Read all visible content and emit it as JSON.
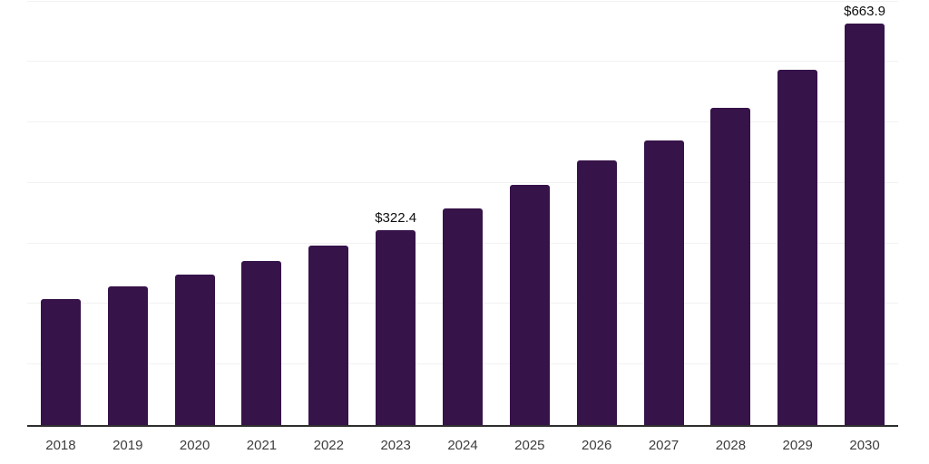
{
  "chart_data": {
    "type": "bar",
    "title": "",
    "xlabel": "",
    "ylabel": "",
    "categories": [
      "2018",
      "2019",
      "2020",
      "2021",
      "2022",
      "2023",
      "2024",
      "2025",
      "2026",
      "2027",
      "2028",
      "2029",
      "2030"
    ],
    "values": [
      208,
      229.5,
      248,
      270.5,
      296.5,
      322.4,
      358,
      396.5,
      437.5,
      469.5,
      524.5,
      587.5,
      663.9
    ],
    "data_labels": {
      "2023": "$322.4",
      "2030": "$663.9"
    },
    "ylim": [
      0,
      700
    ],
    "gridline_values": [
      100,
      200,
      300,
      400,
      500,
      600,
      700
    ],
    "grid": "horizontal-only",
    "y_axis_tick_labels": "none",
    "legend_position": "none",
    "colors": {
      "bar": "#361349",
      "axis_line": "#2e2e2e",
      "gridline": "#f2f2f2",
      "tick_label": "#3d3d3d",
      "data_label": "#0d0d0d",
      "background": "#ffffff"
    }
  }
}
